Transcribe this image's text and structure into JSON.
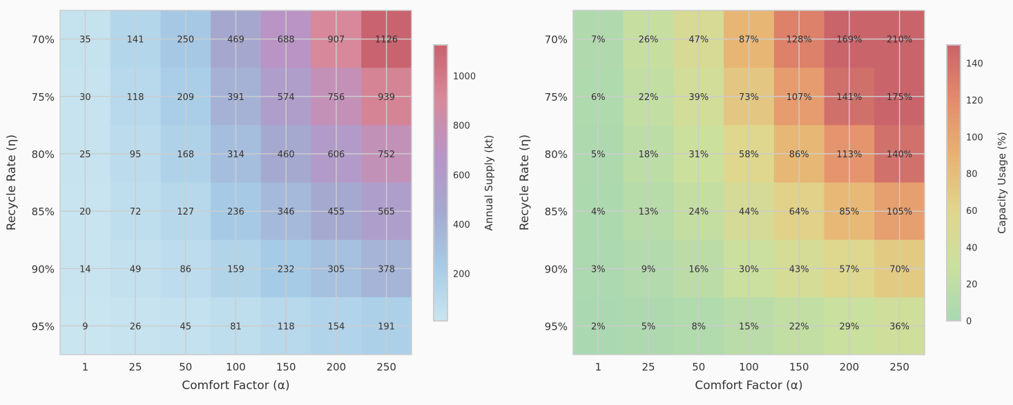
{
  "chart_data": [
    {
      "type": "heatmap",
      "id": "supply",
      "title": "",
      "xlabel": "Comfort Factor (α)",
      "ylabel": "Recycle Rate (η)",
      "x_categories": [
        "1",
        "25",
        "50",
        "100",
        "150",
        "200",
        "250"
      ],
      "y_categories": [
        "70%",
        "75%",
        "80%",
        "85%",
        "90%",
        "95%"
      ],
      "values": [
        [
          35,
          141,
          250,
          469,
          688,
          907,
          1126
        ],
        [
          30,
          118,
          209,
          391,
          574,
          756,
          939
        ],
        [
          25,
          95,
          168,
          314,
          460,
          606,
          752
        ],
        [
          20,
          72,
          127,
          236,
          346,
          455,
          565
        ],
        [
          14,
          49,
          86,
          159,
          232,
          305,
          378
        ],
        [
          9,
          26,
          45,
          81,
          118,
          154,
          191
        ]
      ],
      "cell_labels": [
        [
          "35",
          "141",
          "250",
          "469",
          "688",
          "907",
          "1126"
        ],
        [
          "30",
          "118",
          "209",
          "391",
          "574",
          "756",
          "939"
        ],
        [
          "25",
          "95",
          "168",
          "314",
          "460",
          "606",
          "752"
        ],
        [
          "20",
          "72",
          "127",
          "236",
          "346",
          "455",
          "565"
        ],
        [
          "14",
          "49",
          "86",
          "159",
          "232",
          "305",
          "378"
        ],
        [
          "9",
          "26",
          "45",
          "81",
          "118",
          "154",
          "191"
        ]
      ],
      "colorbar": {
        "label": "Annual Supply (kt)",
        "range": [
          9,
          1126
        ],
        "ticks": [
          200,
          400,
          600,
          800,
          1000
        ],
        "tick_labels": [
          "200",
          "400",
          "600",
          "800",
          "1000"
        ]
      },
      "colormap": [
        "#c9e5f0",
        "#a6cbe6",
        "#a5a8cf",
        "#b894c6",
        "#d78a9c",
        "#c8636f"
      ]
    },
    {
      "type": "heatmap",
      "id": "capacity",
      "title": "",
      "xlabel": "Comfort Factor (α)",
      "ylabel": "Recycle Rate (η)",
      "x_categories": [
        "1",
        "25",
        "50",
        "100",
        "150",
        "200",
        "250"
      ],
      "y_categories": [
        "70%",
        "75%",
        "80%",
        "85%",
        "90%",
        "95%"
      ],
      "values": [
        [
          7,
          26,
          47,
          87,
          128,
          169,
          210
        ],
        [
          6,
          22,
          39,
          73,
          107,
          141,
          175
        ],
        [
          5,
          18,
          31,
          58,
          86,
          113,
          140
        ],
        [
          4,
          13,
          24,
          44,
          64,
          85,
          105
        ],
        [
          3,
          9,
          16,
          30,
          43,
          57,
          70
        ],
        [
          2,
          5,
          8,
          15,
          22,
          29,
          36
        ]
      ],
      "cell_labels": [
        [
          "7%",
          "26%",
          "47%",
          "87%",
          "128%",
          "169%",
          "210%"
        ],
        [
          "6%",
          "22%",
          "39%",
          "73%",
          "107%",
          "141%",
          "175%"
        ],
        [
          "5%",
          "18%",
          "31%",
          "58%",
          "86%",
          "113%",
          "140%"
        ],
        [
          "4%",
          "13%",
          "24%",
          "44%",
          "64%",
          "85%",
          "105%"
        ],
        [
          "3%",
          "9%",
          "16%",
          "30%",
          "43%",
          "57%",
          "70%"
        ],
        [
          "2%",
          "5%",
          "8%",
          "15%",
          "22%",
          "29%",
          "36%"
        ]
      ],
      "colorbar": {
        "label": "Capacity Usage (%)",
        "range": [
          0,
          150
        ],
        "ticks": [
          0,
          20,
          40,
          60,
          80,
          100,
          120,
          140
        ],
        "tick_labels": [
          "0",
          "20",
          "40",
          "60",
          "80",
          "100",
          "120",
          "140"
        ]
      },
      "colormap": [
        "#a8d8b2",
        "#cbe09e",
        "#e0d68c",
        "#e8b272",
        "#e48c6c",
        "#c8646a"
      ]
    }
  ]
}
